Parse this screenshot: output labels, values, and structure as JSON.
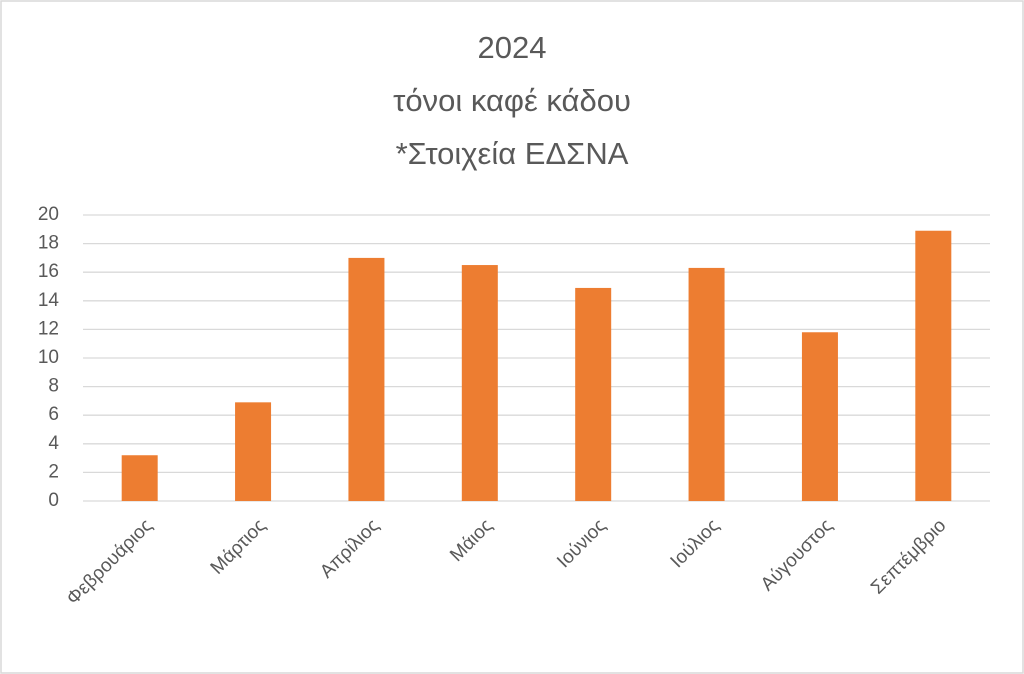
{
  "chart_data": {
    "type": "bar",
    "title": [
      "2024",
      "τόνοι καφέ κάδου",
      "*Στοιχεία ΕΔΣΝΑ"
    ],
    "categories": [
      "Φεβρουάριος",
      "Μάρτιος",
      "Απρίλιος",
      "Μάιος",
      "Ιούνιος",
      "Ιούλιος",
      "Αύγουστος",
      "Σεπτέμβριο"
    ],
    "values": [
      3.2,
      6.9,
      17,
      16.5,
      14.9,
      16.3,
      11.8,
      18.9
    ],
    "color": "#ed7d31",
    "ylim": [
      0,
      20
    ],
    "yticks": [
      0,
      2,
      4,
      6,
      8,
      10,
      12,
      14,
      16,
      18,
      20
    ],
    "grid": true
  }
}
